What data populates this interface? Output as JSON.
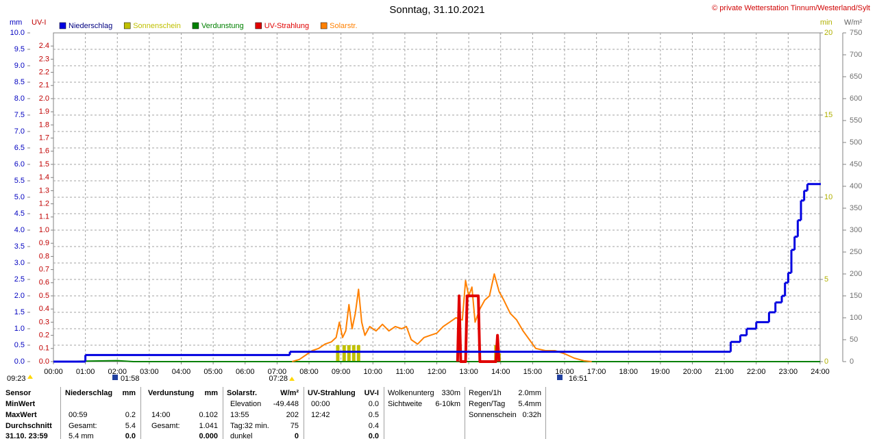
{
  "chart_data": {
    "type": "multi-axis-line",
    "title": "Sonntag, 31.10.2021",
    "copyright": "© private Wetterstation Tinnum/Westerland/Sylt",
    "axis_labels": {
      "y": "mm",
      "y2": "UV-I",
      "y3": "min",
      "y4": "W/m²"
    },
    "grid": true,
    "xlim": [
      0,
      24
    ],
    "xticks": [
      {
        "value": 0,
        "label": "00:00"
      },
      {
        "value": 1,
        "label": "01:00"
      },
      {
        "value": 2,
        "label": "02:00"
      },
      {
        "value": 3,
        "label": "03:00"
      },
      {
        "value": 4,
        "label": "04:00"
      },
      {
        "value": 5,
        "label": "05:00"
      },
      {
        "value": 6,
        "label": "06:00"
      },
      {
        "value": 7,
        "label": "07:00"
      },
      {
        "value": 8,
        "label": "08:00"
      },
      {
        "value": 9,
        "label": "09:00"
      },
      {
        "value": 10,
        "label": "10:00"
      },
      {
        "value": 11,
        "label": "11:00"
      },
      {
        "value": 12,
        "label": "12:00"
      },
      {
        "value": 13,
        "label": "13:00"
      },
      {
        "value": 14,
        "label": "14:00"
      },
      {
        "value": 15,
        "label": "15:00"
      },
      {
        "value": 16,
        "label": "16:00"
      },
      {
        "value": 17,
        "label": "17:00"
      },
      {
        "value": 18,
        "label": "18:00"
      },
      {
        "value": 19,
        "label": "19:00"
      },
      {
        "value": 20,
        "label": "20:00"
      },
      {
        "value": 21,
        "label": "21:00"
      },
      {
        "value": 22,
        "label": "22:00"
      },
      {
        "value": 23,
        "label": "23:00"
      },
      {
        "value": 24,
        "label": "24:00"
      }
    ],
    "ylim": [
      0,
      10
    ],
    "yticks": [
      {
        "value": 0,
        "label": "0.0"
      },
      0.5,
      {
        "value": 1,
        "label": "1.0"
      },
      1.5,
      {
        "value": 2,
        "label": "2.0"
      },
      2.5,
      {
        "value": 3,
        "label": "3.0"
      },
      3.5,
      {
        "value": 4,
        "label": "4.0"
      },
      4.5,
      {
        "value": 5,
        "label": "5.0"
      },
      5.5,
      {
        "value": 6,
        "label": "6.0"
      },
      6.5,
      {
        "value": 7,
        "label": "7.0"
      },
      7.5,
      {
        "value": 8,
        "label": "8.0"
      },
      8.5,
      {
        "value": 9,
        "label": "9.0"
      },
      9.5,
      {
        "value": 10,
        "label": "10.0"
      }
    ],
    "y2lim": [
      0,
      2.5
    ],
    "y2ticks": [
      {
        "value": 0,
        "label": "0.0"
      },
      0.1,
      0.2,
      0.3,
      0.4,
      0.5,
      0.6,
      0.7,
      0.8,
      0.9,
      {
        "value": 1,
        "label": "1.0"
      },
      1.1,
      1.2,
      1.3,
      1.4,
      1.5,
      1.6,
      1.7,
      1.8,
      1.9,
      {
        "value": 2,
        "label": "2.0"
      },
      2.1,
      2.2,
      2.3,
      2.4
    ],
    "y3lim": [
      0,
      20
    ],
    "y3ticks": [
      0,
      5,
      10,
      15,
      20
    ],
    "y4lim": [
      0,
      750
    ],
    "y4ticks": [
      0,
      50,
      100,
      150,
      200,
      250,
      300,
      350,
      400,
      450,
      500,
      550,
      600,
      650,
      700,
      750
    ],
    "series": [
      {
        "name": "Niederschlag",
        "color": "#0000e0",
        "axis": "y",
        "style": "step",
        "x": [
          0,
          1.0,
          7.4,
          21.2,
          21.5,
          21.7,
          22.0,
          22.4,
          22.6,
          22.8,
          22.9,
          23.0,
          23.1,
          23.2,
          23.3,
          23.4,
          23.5,
          23.6,
          24
        ],
        "values": [
          0,
          0.2,
          0.3,
          0.6,
          0.8,
          1.0,
          1.2,
          1.5,
          1.8,
          2.0,
          2.4,
          2.7,
          3.4,
          3.8,
          4.3,
          4.9,
          5.2,
          5.4,
          5.4
        ]
      },
      {
        "name": "Sonnenschein",
        "color": "#c0c000",
        "axis": "y3",
        "style": "bar",
        "x": [
          8.9,
          9.1,
          9.25,
          9.4,
          9.55,
          13.85,
          13.95
        ],
        "values": [
          1,
          1,
          1,
          1,
          1,
          1,
          0.5
        ]
      },
      {
        "name": "Verdunstung",
        "color": "#008000",
        "axis": "y",
        "style": "line",
        "x": [
          0,
          2.0,
          2.5,
          24
        ],
        "values": [
          0,
          0.03,
          0,
          0
        ]
      },
      {
        "name": "UV-Strahlung",
        "color": "#e00000",
        "axis": "y2",
        "style": "line",
        "x": [
          12.65,
          12.7,
          12.75,
          12.9,
          12.95,
          13.3,
          13.35,
          13.85,
          13.9,
          13.95
        ],
        "values": [
          0,
          0.5,
          0,
          0,
          0.5,
          0.5,
          0,
          0,
          0.2,
          0
        ]
      },
      {
        "name": "Solarstr.",
        "color": "#ff8000",
        "axis": "y4",
        "style": "line",
        "x": [
          7.47,
          7.7,
          7.9,
          8.1,
          8.3,
          8.5,
          8.7,
          8.85,
          8.95,
          9.05,
          9.15,
          9.25,
          9.35,
          9.45,
          9.55,
          9.65,
          9.75,
          9.9,
          10.1,
          10.3,
          10.5,
          10.7,
          10.9,
          11.05,
          11.2,
          11.4,
          11.6,
          11.8,
          12.0,
          12.2,
          12.4,
          12.6,
          12.8,
          12.9,
          13.0,
          13.1,
          13.2,
          13.35,
          13.5,
          13.65,
          13.8,
          13.95,
          14.1,
          14.3,
          14.5,
          14.7,
          14.9,
          15.1,
          15.4,
          15.7,
          16.0,
          16.3,
          16.6,
          16.85
        ],
        "values": [
          0,
          5,
          15,
          25,
          30,
          40,
          45,
          55,
          90,
          55,
          70,
          130,
          75,
          110,
          165,
          90,
          60,
          80,
          70,
          85,
          70,
          80,
          75,
          80,
          50,
          40,
          55,
          60,
          65,
          80,
          90,
          100,
          95,
          185,
          150,
          170,
          90,
          120,
          140,
          150,
          200,
          160,
          140,
          110,
          95,
          70,
          50,
          30,
          25,
          25,
          18,
          8,
          2,
          0
        ]
      }
    ],
    "time_markers": [
      "09:23",
      "01:58",
      "07:28",
      "16:51"
    ]
  },
  "table": {
    "sensor": {
      "header": "Sensor",
      "rows": [
        "MinWert",
        "MaxWert",
        "Durchschnitt",
        "31.10. 23:59"
      ]
    },
    "groups": [
      {
        "header": "Niederschlag",
        "unit": "mm",
        "rows": [
          [
            null,
            null
          ],
          [
            "00:59",
            "0.2"
          ],
          [
            "Gesamt:",
            "5.4"
          ],
          [
            "5.4 mm",
            "0.0"
          ]
        ]
      },
      {
        "header": "Verdunstung",
        "unit": "mm",
        "rows": [
          [
            null,
            null
          ],
          [
            "14:00",
            "0.102"
          ],
          [
            "Gesamt:",
            "1.041"
          ],
          [
            null,
            "0.000"
          ]
        ]
      },
      {
        "header": "Solarstr.",
        "unit": "W/m²",
        "rows": [
          [
            "Elevation",
            "-49.448"
          ],
          [
            "13:55",
            "202"
          ],
          [
            "Tag:32 min.",
            "75"
          ],
          [
            "dunkel",
            "0"
          ]
        ]
      },
      {
        "header": "UV-Strahlung",
        "unit": "UV-I",
        "rows": [
          [
            "00:00",
            "0.0"
          ],
          [
            "12:42",
            "0.5"
          ],
          [
            null,
            "0.4"
          ],
          [
            null,
            "0.0"
          ]
        ]
      }
    ],
    "extra": [
      {
        "rows": [
          [
            "Wolkenunterg",
            "330m"
          ],
          [
            "Sichtweite",
            "6-10km"
          ]
        ]
      },
      {
        "rows": [
          [
            "Regen/1h",
            "2.0mm"
          ],
          [
            "Regen/Tag",
            "5.4mm"
          ],
          [
            "Sonnenschein",
            "0:32h"
          ]
        ]
      }
    ]
  }
}
